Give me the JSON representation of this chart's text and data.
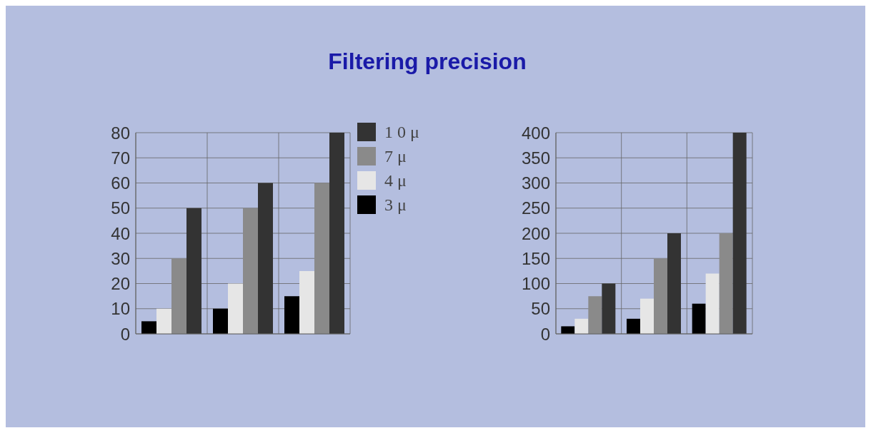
{
  "chart_data": [
    {
      "type": "bar",
      "title": "Filtering precision",
      "categories": [
        null,
        null,
        null
      ],
      "series": [
        {
          "name": "3 μ",
          "color": "#000000",
          "values": [
            5,
            10,
            15
          ]
        },
        {
          "name": "4 μ",
          "color": "#e6e6e6",
          "values": [
            10,
            20,
            25
          ]
        },
        {
          "name": "7 μ",
          "color": "#8a8a8a",
          "values": [
            30,
            50,
            60
          ]
        },
        {
          "name": "1 0 μ",
          "color": "#333333",
          "values": [
            50,
            60,
            80
          ]
        }
      ],
      "ylim": [
        0,
        80
      ],
      "yticks": [
        0,
        10,
        20,
        30,
        40,
        50,
        60,
        70,
        80
      ],
      "grid": true,
      "legend": "right"
    },
    {
      "type": "bar",
      "categories": [
        null,
        null,
        null
      ],
      "series": [
        {
          "color": "#000000",
          "values": [
            15,
            30,
            60
          ]
        },
        {
          "color": "#e6e6e6",
          "values": [
            30,
            70,
            120
          ]
        },
        {
          "color": "#8a8a8a",
          "values": [
            75,
            150,
            200
          ]
        },
        {
          "color": "#333333",
          "values": [
            100,
            200,
            400
          ]
        }
      ],
      "ylim": [
        0,
        400
      ],
      "yticks": [
        0,
        50,
        100,
        150,
        200,
        250,
        300,
        350,
        400
      ],
      "grid": true
    }
  ]
}
